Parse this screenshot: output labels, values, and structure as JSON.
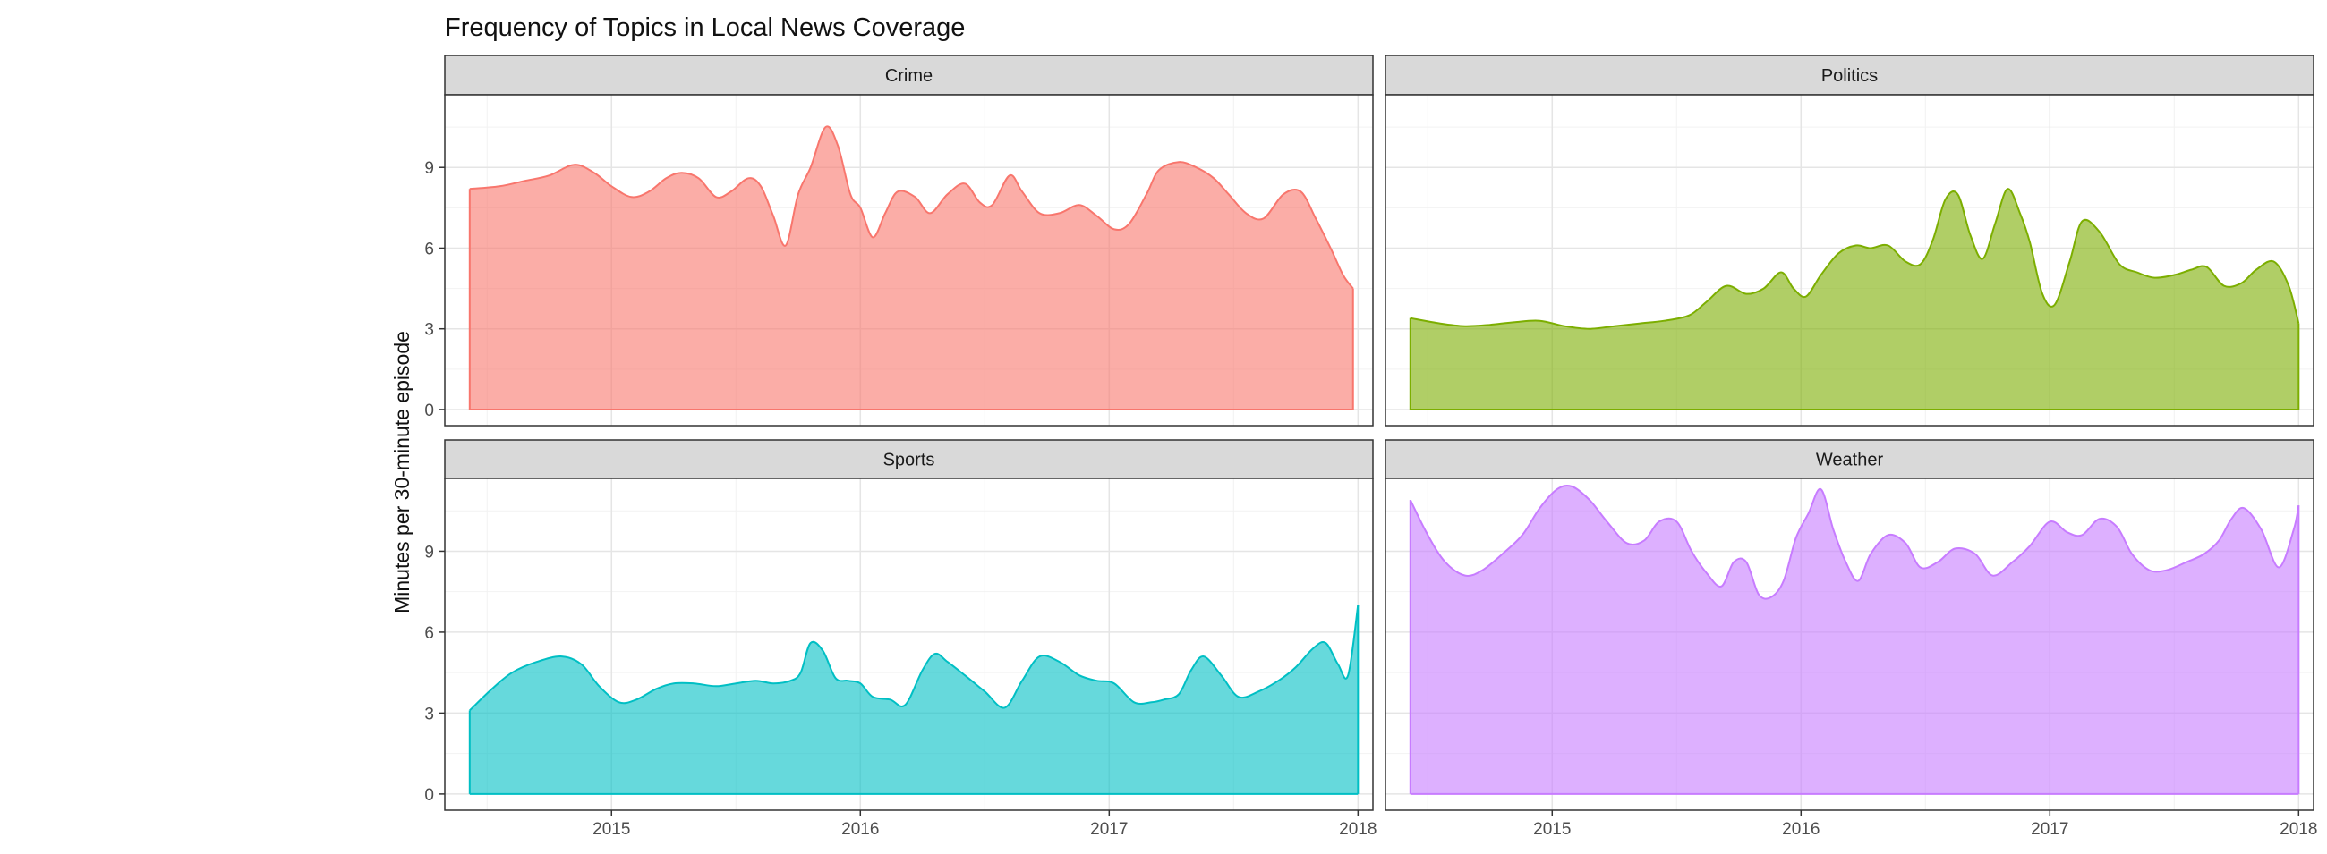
{
  "chart_data": {
    "type": "area",
    "title": "Frequency of Topics in Local News Coverage",
    "xlabel": "",
    "ylabel": "Minutes per 30-minute episode",
    "x_ticks": [
      "2015",
      "2016",
      "2017",
      "2018"
    ],
    "y_ticks": [
      "0",
      "3",
      "6",
      "9"
    ],
    "xlim": [
      2014.33,
      2018.06
    ],
    "ylim": [
      -0.6,
      11.7
    ],
    "grid": true,
    "legend": "none",
    "facets": [
      {
        "label": "Crime",
        "color": "#F8766D",
        "x": [
          2014.43,
          2014.55,
          2014.65,
          2014.75,
          2014.85,
          2014.93,
          2015.0,
          2015.08,
          2015.15,
          2015.22,
          2015.28,
          2015.35,
          2015.42,
          2015.48,
          2015.55,
          2015.6,
          2015.65,
          2015.7,
          2015.75,
          2015.8,
          2015.86,
          2015.91,
          2015.96,
          2016.0,
          2016.05,
          2016.1,
          2016.15,
          2016.22,
          2016.28,
          2016.35,
          2016.42,
          2016.48,
          2016.53,
          2016.6,
          2016.65,
          2016.72,
          2016.8,
          2016.88,
          2016.95,
          2017.02,
          2017.08,
          2017.15,
          2017.2,
          2017.28,
          2017.35,
          2017.42,
          2017.48,
          2017.55,
          2017.62,
          2017.7,
          2017.77,
          2017.83,
          2017.89,
          2017.94,
          2017.98
        ],
        "y": [
          8.2,
          8.3,
          8.5,
          8.7,
          9.1,
          8.8,
          8.3,
          7.9,
          8.1,
          8.6,
          8.8,
          8.6,
          7.9,
          8.1,
          8.6,
          8.3,
          7.2,
          6.1,
          8.0,
          9.0,
          10.5,
          9.8,
          8.0,
          7.5,
          6.4,
          7.3,
          8.1,
          7.9,
          7.3,
          8.0,
          8.4,
          7.7,
          7.6,
          8.7,
          8.1,
          7.3,
          7.3,
          7.6,
          7.2,
          6.7,
          6.9,
          8.0,
          8.9,
          9.2,
          9.0,
          8.6,
          8.0,
          7.3,
          7.1,
          8.0,
          8.1,
          7.1,
          6.0,
          5.0,
          4.5
        ]
      },
      {
        "label": "Politics",
        "color": "#7CAE00",
        "x": [
          2014.43,
          2014.55,
          2014.65,
          2014.75,
          2014.85,
          2014.95,
          2015.05,
          2015.15,
          2015.25,
          2015.35,
          2015.45,
          2015.55,
          2015.62,
          2015.7,
          2015.78,
          2015.85,
          2015.92,
          2015.97,
          2016.02,
          2016.08,
          2016.15,
          2016.22,
          2016.28,
          2016.35,
          2016.42,
          2016.48,
          2016.53,
          2016.58,
          2016.63,
          2016.68,
          2016.73,
          2016.78,
          2016.83,
          2016.88,
          2016.92,
          2016.97,
          2017.02,
          2017.08,
          2017.13,
          2017.2,
          2017.28,
          2017.35,
          2017.42,
          2017.5,
          2017.57,
          2017.63,
          2017.7,
          2017.77,
          2017.83,
          2017.9,
          2017.96,
          2018.0
        ],
        "y": [
          3.4,
          3.2,
          3.1,
          3.15,
          3.25,
          3.3,
          3.1,
          3.0,
          3.1,
          3.2,
          3.3,
          3.5,
          4.0,
          4.6,
          4.3,
          4.5,
          5.1,
          4.5,
          4.2,
          5.0,
          5.8,
          6.1,
          6.0,
          6.1,
          5.5,
          5.4,
          6.3,
          7.8,
          8.0,
          6.5,
          5.6,
          6.9,
          8.2,
          7.3,
          6.2,
          4.3,
          3.9,
          5.5,
          7.0,
          6.6,
          5.4,
          5.1,
          4.9,
          5.0,
          5.2,
          5.3,
          4.6,
          4.7,
          5.2,
          5.5,
          4.6,
          3.2
        ]
      },
      {
        "label": "Sports",
        "color": "#00BFC4",
        "x": [
          2014.43,
          2014.52,
          2014.6,
          2014.7,
          2014.8,
          2014.88,
          2014.95,
          2015.03,
          2015.1,
          2015.18,
          2015.25,
          2015.33,
          2015.42,
          2015.5,
          2015.58,
          2015.65,
          2015.72,
          2015.76,
          2015.8,
          2015.85,
          2015.9,
          2015.95,
          2016.0,
          2016.05,
          2016.12,
          2016.18,
          2016.25,
          2016.3,
          2016.35,
          2016.42,
          2016.5,
          2016.58,
          2016.65,
          2016.72,
          2016.8,
          2016.88,
          2016.95,
          2017.02,
          2017.1,
          2017.17,
          2017.22,
          2017.28,
          2017.33,
          2017.38,
          2017.45,
          2017.52,
          2017.6,
          2017.68,
          2017.75,
          2017.82,
          2017.87,
          2017.92,
          2017.96,
          2018.0
        ],
        "y": [
          3.1,
          3.9,
          4.5,
          4.9,
          5.1,
          4.8,
          4.0,
          3.4,
          3.5,
          3.9,
          4.1,
          4.1,
          4.0,
          4.1,
          4.2,
          4.1,
          4.2,
          4.5,
          5.6,
          5.3,
          4.3,
          4.2,
          4.1,
          3.6,
          3.5,
          3.3,
          4.6,
          5.2,
          4.9,
          4.4,
          3.8,
          3.2,
          4.2,
          5.1,
          4.9,
          4.4,
          4.2,
          4.1,
          3.4,
          3.4,
          3.5,
          3.7,
          4.6,
          5.1,
          4.4,
          3.6,
          3.8,
          4.2,
          4.7,
          5.4,
          5.6,
          4.8,
          4.4,
          7.0
        ]
      },
      {
        "label": "Weather",
        "color": "#C77CFF",
        "x": [
          2014.43,
          2014.5,
          2014.57,
          2014.65,
          2014.72,
          2014.8,
          2014.88,
          2014.95,
          2015.02,
          2015.08,
          2015.15,
          2015.22,
          2015.3,
          2015.37,
          2015.43,
          2015.5,
          2015.56,
          2015.62,
          2015.68,
          2015.73,
          2015.78,
          2015.83,
          2015.88,
          2015.93,
          2015.98,
          2016.03,
          2016.08,
          2016.13,
          2016.18,
          2016.23,
          2016.28,
          2016.35,
          2016.42,
          2016.48,
          2016.55,
          2016.62,
          2016.7,
          2016.77,
          2016.85,
          2016.92,
          2017.0,
          2017.07,
          2017.13,
          2017.2,
          2017.27,
          2017.33,
          2017.4,
          2017.47,
          2017.55,
          2017.62,
          2017.68,
          2017.73,
          2017.78,
          2017.85,
          2017.92,
          2017.98,
          2018.0
        ],
        "y": [
          10.9,
          9.6,
          8.6,
          8.1,
          8.3,
          8.9,
          9.6,
          10.6,
          11.3,
          11.4,
          10.9,
          10.1,
          9.3,
          9.4,
          10.1,
          10.1,
          9.0,
          8.2,
          7.7,
          8.6,
          8.6,
          7.4,
          7.3,
          7.9,
          9.5,
          10.4,
          11.3,
          9.8,
          8.6,
          7.9,
          8.9,
          9.6,
          9.3,
          8.4,
          8.6,
          9.1,
          8.9,
          8.1,
          8.6,
          9.2,
          10.1,
          9.7,
          9.6,
          10.2,
          9.9,
          8.9,
          8.3,
          8.3,
          8.6,
          8.9,
          9.4,
          10.2,
          10.6,
          9.8,
          8.4,
          9.8,
          10.7
        ]
      }
    ]
  }
}
